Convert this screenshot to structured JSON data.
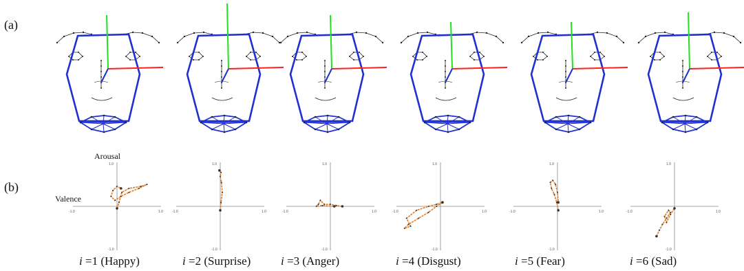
{
  "row_labels": {
    "a": "(a)",
    "b": "(b)"
  },
  "axis_words": {
    "arousal": "Arousal",
    "valence": "Valence"
  },
  "tick_labels": {
    "neg": "-1.0",
    "pos": "1.0"
  },
  "panels": [
    {
      "index_var": "i",
      "caption_rest": " =1 (Happy)",
      "trajectory": [
        [
          0.0,
          -0.05
        ],
        [
          0.05,
          0.1
        ],
        [
          0.12,
          0.35
        ],
        [
          0.3,
          0.45
        ],
        [
          0.6,
          0.5
        ],
        [
          0.75,
          0.55
        ],
        [
          0.55,
          0.45
        ],
        [
          0.3,
          0.35
        ],
        [
          0.1,
          0.25
        ],
        [
          -0.05,
          0.15
        ],
        [
          -0.15,
          0.25
        ],
        [
          -0.1,
          0.4
        ],
        [
          0.0,
          0.5
        ],
        [
          0.1,
          0.45
        ]
      ]
    },
    {
      "index_var": "i",
      "caption_rest": " =2 (Surprise)",
      "trajectory": [
        [
          0.0,
          -0.1
        ],
        [
          0.02,
          0.1
        ],
        [
          0.05,
          0.35
        ],
        [
          0.03,
          0.6
        ],
        [
          0.0,
          0.75
        ],
        [
          0.02,
          0.85
        ],
        [
          -0.02,
          0.9
        ]
      ]
    },
    {
      "index_var": "i",
      "caption_rest": " =3 (Anger)",
      "trajectory": [
        [
          0.3,
          0.0
        ],
        [
          0.15,
          0.02
        ],
        [
          0.0,
          0.05
        ],
        [
          -0.15,
          0.05
        ],
        [
          -0.25,
          0.15
        ],
        [
          -0.3,
          0.05
        ],
        [
          -0.35,
          0.0
        ],
        [
          -0.2,
          0.02
        ],
        [
          0.1,
          0.0
        ]
      ]
    },
    {
      "index_var": "i",
      "caption_rest": " =4 (Disgust)",
      "trajectory": [
        [
          0.05,
          0.1
        ],
        [
          -0.1,
          0.0
        ],
        [
          -0.3,
          -0.15
        ],
        [
          -0.55,
          -0.3
        ],
        [
          -0.8,
          -0.45
        ],
        [
          -0.9,
          -0.55
        ],
        [
          -0.75,
          -0.5
        ],
        [
          -0.85,
          -0.3
        ],
        [
          -0.6,
          -0.1
        ],
        [
          -0.3,
          0.0
        ],
        [
          -0.1,
          0.05
        ],
        [
          0.05,
          0.1
        ]
      ]
    },
    {
      "index_var": "i",
      "caption_rest": " =5 (Fear)",
      "trajectory": [
        [
          0.02,
          -0.1
        ],
        [
          -0.02,
          0.1
        ],
        [
          -0.08,
          0.3
        ],
        [
          -0.15,
          0.45
        ],
        [
          -0.18,
          0.6
        ],
        [
          -0.12,
          0.65
        ],
        [
          -0.05,
          0.55
        ],
        [
          0.0,
          0.35
        ],
        [
          0.02,
          0.1
        ]
      ]
    },
    {
      "index_var": "i",
      "caption_rest": " =6 (Sad)",
      "trajectory": [
        [
          -0.45,
          -0.75
        ],
        [
          -0.38,
          -0.6
        ],
        [
          -0.3,
          -0.45
        ],
        [
          -0.2,
          -0.3
        ],
        [
          -0.1,
          -0.15
        ],
        [
          -0.15,
          -0.1
        ],
        [
          -0.25,
          -0.25
        ],
        [
          -0.2,
          -0.4
        ],
        [
          -0.1,
          -0.2
        ],
        [
          0.0,
          -0.05
        ]
      ]
    }
  ],
  "colors": {
    "mesh": "#1f2fd1",
    "axis_x": "#ff2020",
    "axis_y": "#22e022",
    "landmarks": "#222222",
    "trajectory": "#e0863a",
    "trajectory_dots": "#333333"
  }
}
